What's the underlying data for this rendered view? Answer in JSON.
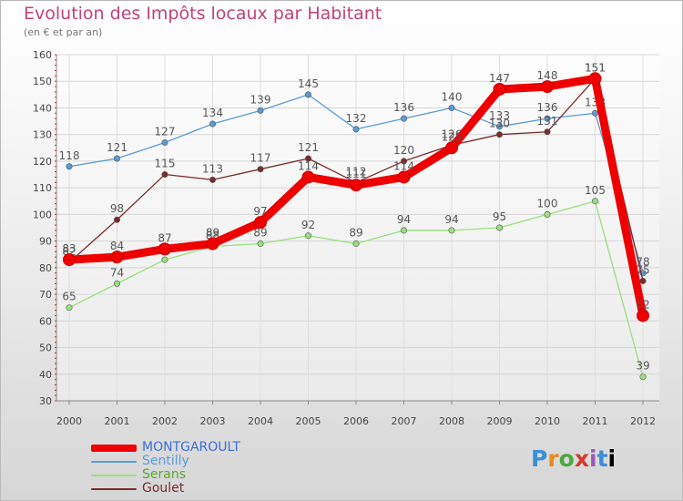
{
  "title": "Evolution des Impôts locaux par Habitant",
  "subtitle": "(en € et par an)",
  "logo_text": "Proxiti",
  "chart_data": {
    "type": "line",
    "title": "Evolution des Impôts locaux par Habitant",
    "ylabel": "(en € et par an)",
    "xlabel": "",
    "grid": true,
    "ylim": [
      30,
      160
    ],
    "yticks": [
      30,
      40,
      50,
      60,
      70,
      80,
      90,
      100,
      110,
      120,
      130,
      140,
      150,
      160
    ],
    "x": [
      "2000",
      "2001",
      "2002",
      "2003",
      "2004",
      "2005",
      "2006",
      "2007",
      "2008",
      "2009",
      "2010",
      "2011",
      "2012"
    ],
    "legend_position": "bottom-left",
    "series": [
      {
        "name": "Sentilly",
        "color": "#5b9bd5",
        "values": [
          118,
          121,
          127,
          134,
          139,
          145,
          132,
          136,
          140,
          133,
          136,
          138,
          78
        ]
      },
      {
        "name": "Serans",
        "color": "#99e07c",
        "values": [
          65,
          74,
          83,
          88,
          89,
          92,
          89,
          94,
          94,
          95,
          100,
          105,
          39
        ]
      },
      {
        "name": "Goulet",
        "color": "#7a2b2b",
        "values": [
          82,
          98,
          115,
          113,
          117,
          121,
          112,
          120,
          126,
          130,
          131,
          151,
          75
        ]
      },
      {
        "name": "MONTGAROULT",
        "color": "#ee0000",
        "values": [
          83,
          84,
          87,
          89,
          97,
          114,
          111,
          114,
          125,
          147,
          148,
          151,
          62
        ]
      }
    ],
    "legend_order": [
      "MONTGAROULT",
      "Sentilly",
      "Serans",
      "Goulet"
    ]
  }
}
